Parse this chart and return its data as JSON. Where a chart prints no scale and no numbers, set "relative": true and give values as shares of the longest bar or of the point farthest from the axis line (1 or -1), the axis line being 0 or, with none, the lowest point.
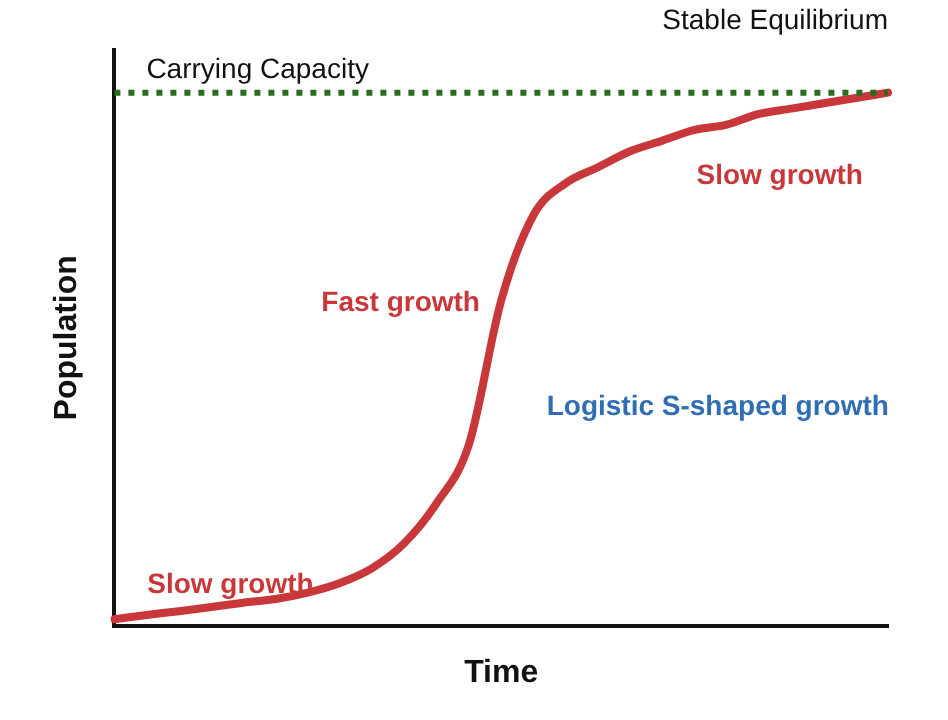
{
  "chart_data": {
    "type": "line",
    "relative": true,
    "xlabel": "Time",
    "ylabel": "Population",
    "grid": false,
    "legend": false,
    "marker": "none",
    "line_style": "solid",
    "categories": [
      null,
      null,
      null,
      null,
      null,
      null,
      null,
      null,
      null,
      null,
      null,
      null,
      null,
      null,
      null,
      null,
      null,
      null,
      null,
      null,
      null,
      null,
      null,
      null,
      null
    ],
    "series": [
      {
        "color": "#c8383a",
        "values": [
          0.012,
          0.02,
          0.027,
          0.035,
          0.043,
          0.05,
          0.062,
          0.08,
          0.108,
          0.155,
          0.23,
          0.34,
          0.61,
          0.77,
          0.83,
          0.86,
          0.89,
          0.91,
          0.93,
          0.94,
          0.96,
          0.97,
          0.98,
          0.99,
          1
        ]
      }
    ],
    "ref_lines": [
      {
        "axis": "y",
        "value": 1,
        "label": "Carrying Capacity",
        "color": "#2e6a1f",
        "line_style": "dotted"
      }
    ],
    "annotations": [
      "Stable Equilibrium",
      "Slow growth",
      "Fast growth",
      "Slow growth",
      "Logistic S-shaped growth"
    ]
  }
}
